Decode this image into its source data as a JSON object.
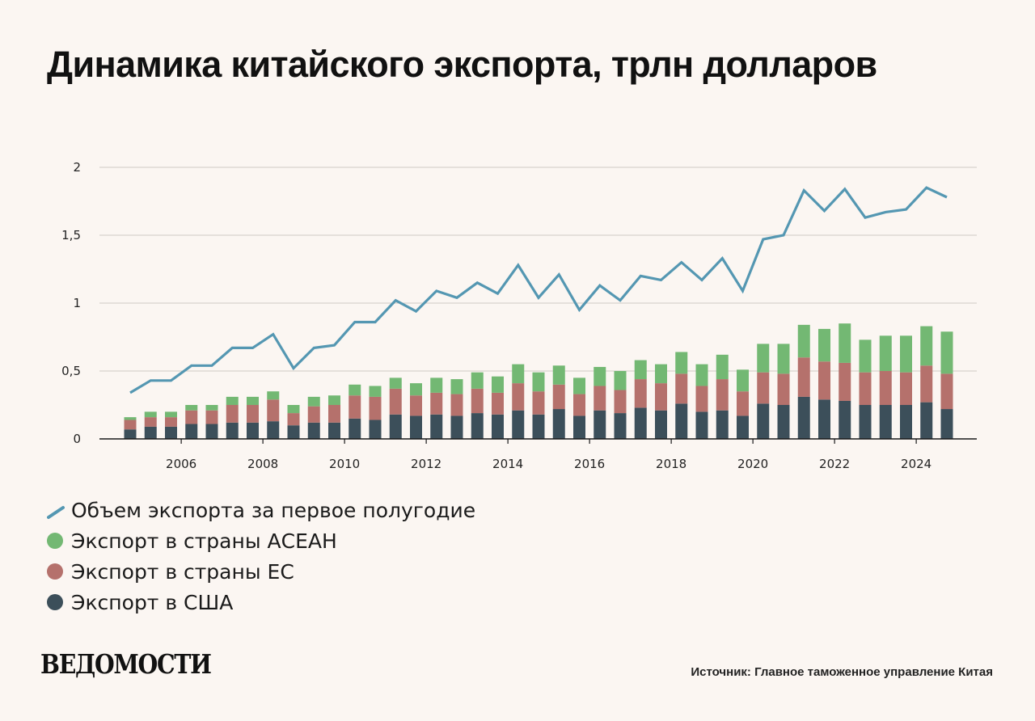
{
  "title": "Динамика китайского экспорта, трлн долларов",
  "chart_data": {
    "type": "bar",
    "stacked": true,
    "title": "Динамика китайского экспорта, трлн долларов",
    "xlabel": "",
    "ylabel": "",
    "ylim": [
      0,
      2
    ],
    "y_ticks": [
      0,
      0.5,
      1,
      1.5,
      2
    ],
    "y_tick_labels": [
      "0",
      "0,5",
      "1",
      "1,5",
      "2"
    ],
    "x_start_year": 2005,
    "x_ticks": [
      2006,
      2008,
      2010,
      2012,
      2014,
      2016,
      2018,
      2020,
      2022,
      2024
    ],
    "x_tick_labels": [
      "2006",
      "2008",
      "2010",
      "2012",
      "2014",
      "2016",
      "2018",
      "2020",
      "2022",
      "2024"
    ],
    "periods_per_year": 2,
    "grid": true,
    "legend_position": "bottom-left",
    "series": [
      {
        "name": "Экспорт в США",
        "kind": "bar",
        "color": "#3c4f5a",
        "values": [
          0.07,
          0.09,
          0.09,
          0.11,
          0.11,
          0.12,
          0.12,
          0.13,
          0.1,
          0.12,
          0.12,
          0.15,
          0.14,
          0.18,
          0.17,
          0.18,
          0.17,
          0.19,
          0.18,
          0.21,
          0.18,
          0.22,
          0.17,
          0.21,
          0.19,
          0.23,
          0.21,
          0.26,
          0.2,
          0.21,
          0.17,
          0.26,
          0.25,
          0.31,
          0.29,
          0.28,
          0.25,
          0.25,
          0.25,
          0.27,
          0.22
        ]
      },
      {
        "name": "Экспорт в страны ЕС",
        "kind": "bar",
        "color": "#b5716c",
        "values": [
          0.07,
          0.07,
          0.07,
          0.1,
          0.1,
          0.13,
          0.13,
          0.16,
          0.09,
          0.12,
          0.13,
          0.17,
          0.17,
          0.19,
          0.15,
          0.16,
          0.16,
          0.18,
          0.16,
          0.2,
          0.17,
          0.18,
          0.16,
          0.18,
          0.17,
          0.21,
          0.2,
          0.22,
          0.19,
          0.23,
          0.18,
          0.23,
          0.23,
          0.29,
          0.28,
          0.28,
          0.24,
          0.25,
          0.24,
          0.27,
          0.26
        ]
      },
      {
        "name": "Экспорт в страны АСЕАН",
        "kind": "bar",
        "color": "#73b873",
        "values": [
          0.02,
          0.04,
          0.04,
          0.04,
          0.04,
          0.06,
          0.06,
          0.06,
          0.06,
          0.07,
          0.07,
          0.08,
          0.08,
          0.08,
          0.09,
          0.11,
          0.11,
          0.12,
          0.12,
          0.14,
          0.14,
          0.14,
          0.12,
          0.14,
          0.14,
          0.14,
          0.14,
          0.16,
          0.16,
          0.18,
          0.16,
          0.21,
          0.22,
          0.24,
          0.24,
          0.29,
          0.24,
          0.26,
          0.27,
          0.29,
          0.31
        ]
      },
      {
        "name": "Объем экспорта за первое полугодие",
        "kind": "line",
        "color": "#5497b2",
        "values": [
          0.34,
          0.43,
          0.43,
          0.54,
          0.54,
          0.67,
          0.67,
          0.77,
          0.52,
          0.67,
          0.69,
          0.86,
          0.86,
          1.02,
          0.94,
          1.09,
          1.04,
          1.15,
          1.07,
          1.28,
          1.04,
          1.21,
          0.95,
          1.13,
          1.02,
          1.2,
          1.17,
          1.3,
          1.17,
          1.33,
          1.09,
          1.47,
          1.5,
          1.83,
          1.68,
          1.84,
          1.63,
          1.67,
          1.69,
          1.85,
          1.78
        ]
      }
    ]
  },
  "legend": {
    "items": [
      {
        "label": "Объем экспорта за первое полугодие",
        "color": "#5497b2",
        "kind": "line"
      },
      {
        "label": "Экспорт в страны АСЕАН",
        "color": "#73b873",
        "kind": "dot"
      },
      {
        "label": "Экспорт в страны ЕС",
        "color": "#b5716c",
        "kind": "dot"
      },
      {
        "label": "Экспорт в США",
        "color": "#3c4f5a",
        "kind": "dot"
      }
    ]
  },
  "footer": {
    "logo": "ВЕДОМОСТИ",
    "source": "Источник: Главное таможенное управление Китая"
  }
}
